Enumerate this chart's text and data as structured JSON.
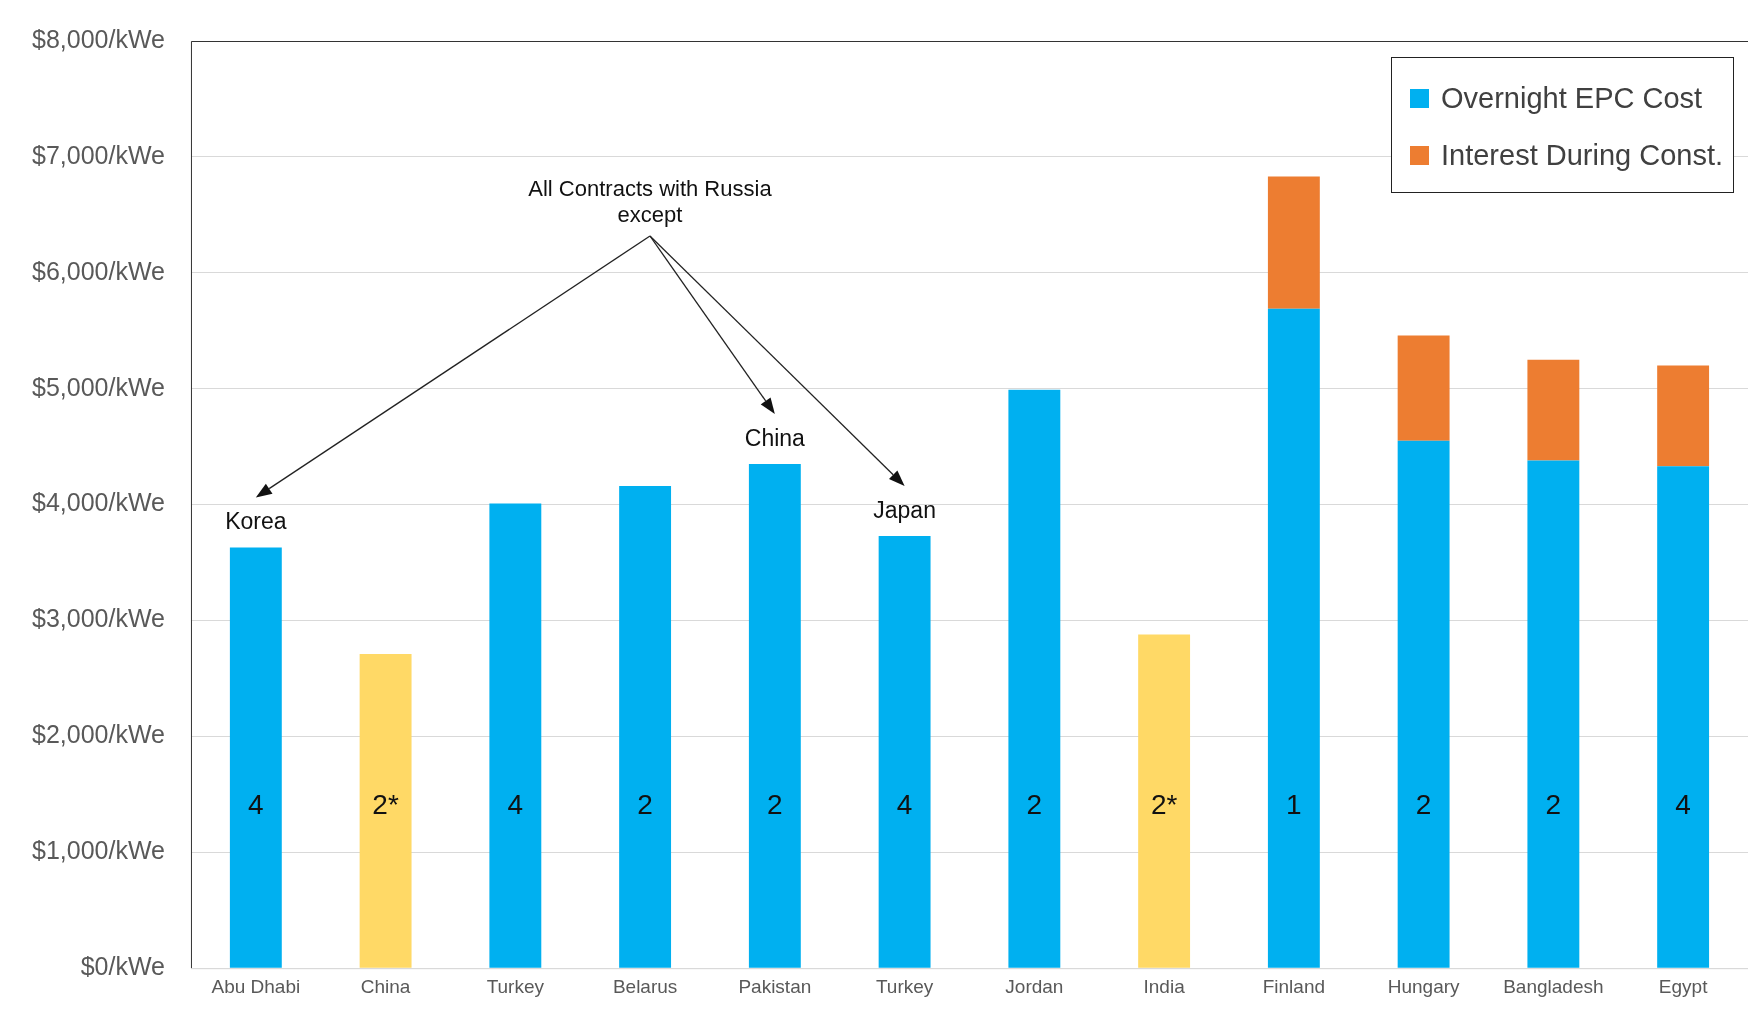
{
  "chart_data": {
    "type": "bar",
    "stacked": true,
    "categories": [
      "Abu Dhabi",
      "China",
      "Turkey",
      "Belarus",
      "Pakistan",
      "Turkey",
      "Jordan",
      "India",
      "Finland",
      "Hungary",
      "Bangladesh",
      "Egypt"
    ],
    "series": [
      {
        "name": "Overnight EPC Cost",
        "color": "#00b0f0",
        "colors": [
          "#00b0f0",
          "#ffd966",
          "#00b0f0",
          "#00b0f0",
          "#00b0f0",
          "#00b0f0",
          "#00b0f0",
          "#ffd966",
          "#00b0f0",
          "#00b0f0",
          "#00b0f0",
          "#00b0f0"
        ],
        "values": [
          3630,
          2710,
          4010,
          4160,
          4350,
          3730,
          4990,
          2880,
          5690,
          4550,
          4380,
          4330
        ]
      },
      {
        "name": "Interest During Const.",
        "color": "#ed7d31",
        "values": [
          null,
          null,
          null,
          null,
          null,
          null,
          null,
          null,
          1140,
          910,
          870,
          870
        ]
      }
    ],
    "ylim": [
      0,
      8000
    ],
    "yticks": [
      {
        "value": 0,
        "label": "$0/kWe"
      },
      {
        "value": 1000,
        "label": "$1,000/kWe"
      },
      {
        "value": 2000,
        "label": "$2,000/kWe"
      },
      {
        "value": 3000,
        "label": "$3,000/kWe"
      },
      {
        "value": 4000,
        "label": "$4,000/kWe"
      },
      {
        "value": 5000,
        "label": "$5,000/kWe"
      },
      {
        "value": 6000,
        "label": "$6,000/kWe"
      },
      {
        "value": 7000,
        "label": "$7,000/kWe"
      },
      {
        "value": 8000,
        "label": "$8,000/kWe"
      }
    ],
    "grid": "y",
    "legend": "top right",
    "annotations": [
      "4",
      "2*",
      "4",
      "2",
      "2",
      "4",
      "2",
      "2*",
      "1",
      "2",
      "2",
      "4",
      "Korea",
      "China",
      "Japan",
      "All Contracts with Russia except"
    ]
  }
}
